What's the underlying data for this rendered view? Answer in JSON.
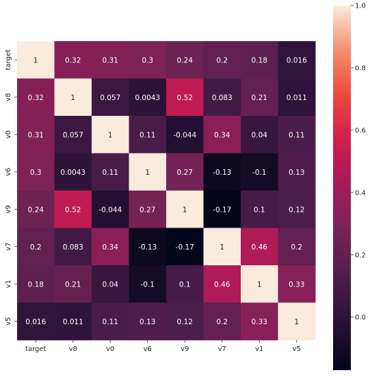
{
  "chart_data": {
    "type": "heatmap",
    "title": "",
    "xlabel": "",
    "ylabel": "",
    "rows": [
      "target",
      "v8",
      "v0",
      "v6",
      "v9",
      "v7",
      "v1",
      "v5"
    ],
    "columns": [
      "target",
      "v8",
      "v0",
      "v6",
      "v9",
      "v7",
      "v1",
      "v5"
    ],
    "values": [
      [
        1,
        0.32,
        0.31,
        0.3,
        0.24,
        0.2,
        0.18,
        0.016
      ],
      [
        0.32,
        1,
        0.057,
        0.0043,
        0.52,
        0.083,
        0.21,
        0.011
      ],
      [
        0.31,
        0.057,
        1,
        0.11,
        -0.044,
        0.34,
        0.04,
        0.11
      ],
      [
        0.3,
        0.0043,
        0.11,
        1,
        0.27,
        -0.13,
        -0.1,
        0.13
      ],
      [
        0.24,
        0.52,
        -0.044,
        0.27,
        1,
        -0.17,
        0.1,
        0.12
      ],
      [
        0.2,
        0.083,
        0.34,
        -0.13,
        -0.17,
        1,
        0.46,
        0.2
      ],
      [
        0.18,
        0.21,
        0.04,
        -0.1,
        0.1,
        0.46,
        1,
        0.33
      ],
      [
        0.016,
        0.011,
        0.11,
        0.13,
        0.12,
        0.2,
        0.33,
        1
      ]
    ],
    "colorbar": {
      "range": [
        -0.17,
        1.0
      ],
      "ticks": [
        0.0,
        0.2,
        0.4,
        0.6,
        0.8,
        1.0
      ],
      "tick_labels": [
        "0.0",
        "0.2",
        "0.4",
        "0.6",
        "0.8",
        "1.0"
      ],
      "colormap": "rocket"
    }
  }
}
